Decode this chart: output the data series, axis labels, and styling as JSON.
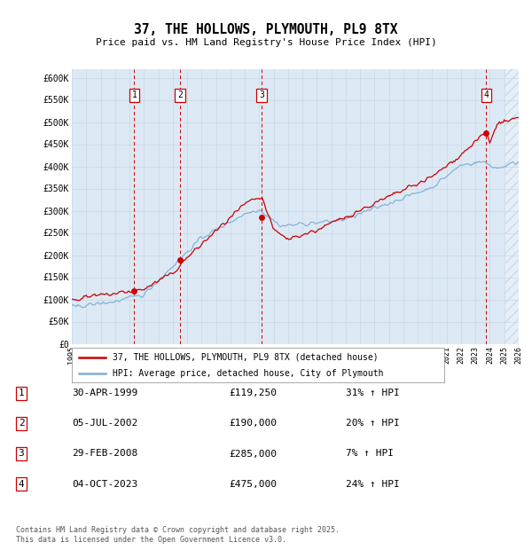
{
  "title": "37, THE HOLLOWS, PLYMOUTH, PL9 8TX",
  "subtitle": "Price paid vs. HM Land Registry's House Price Index (HPI)",
  "ylabel_ticks": [
    "£0",
    "£50K",
    "£100K",
    "£150K",
    "£200K",
    "£250K",
    "£300K",
    "£350K",
    "£400K",
    "£450K",
    "£500K",
    "£550K",
    "£600K"
  ],
  "ylim": [
    0,
    620000
  ],
  "ytick_vals": [
    0,
    50000,
    100000,
    150000,
    200000,
    250000,
    300000,
    350000,
    400000,
    450000,
    500000,
    550000,
    600000
  ],
  "bg_color": "#dce9f5",
  "hatch_color": "#b8ccdf",
  "sale_color": "#cc0000",
  "hpi_color": "#7aadd4",
  "vline_color": "#cc0000",
  "sale_points": [
    {
      "year": 1999.33,
      "price": 119250,
      "label": "1"
    },
    {
      "year": 2002.5,
      "price": 190000,
      "label": "2"
    },
    {
      "year": 2008.17,
      "price": 285000,
      "label": "3"
    },
    {
      "year": 2023.75,
      "price": 475000,
      "label": "4"
    }
  ],
  "legend_sale": "37, THE HOLLOWS, PLYMOUTH, PL9 8TX (detached house)",
  "legend_hpi": "HPI: Average price, detached house, City of Plymouth",
  "table_rows": [
    [
      "1",
      "30-APR-1999",
      "£119,250",
      "31% ↑ HPI"
    ],
    [
      "2",
      "05-JUL-2002",
      "£190,000",
      "20% ↑ HPI"
    ],
    [
      "3",
      "29-FEB-2008",
      "£285,000",
      "7% ↑ HPI"
    ],
    [
      "4",
      "04-OCT-2023",
      "£475,000",
      "24% ↑ HPI"
    ]
  ],
  "footnote": "Contains HM Land Registry data © Crown copyright and database right 2025.\nThis data is licensed under the Open Government Licence v3.0.",
  "xmin": 1995,
  "xmax": 2026
}
